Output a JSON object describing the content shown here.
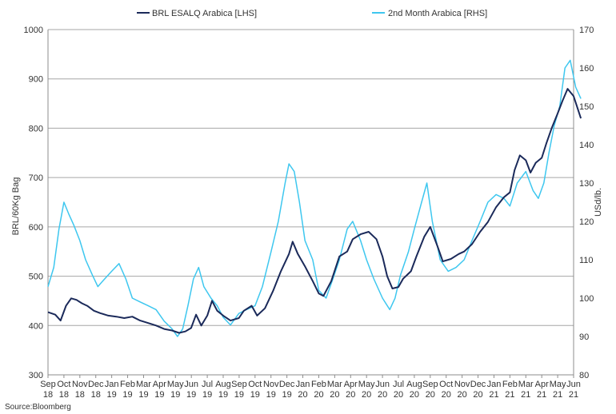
{
  "chart_data": {
    "type": "line",
    "legend_position": "top",
    "source": "Source:Bloomberg",
    "left_axis": {
      "label": "BRL/60Kg Bag",
      "ylim": [
        300,
        1000
      ],
      "ticks": [
        300,
        400,
        500,
        600,
        700,
        800,
        900,
        1000
      ]
    },
    "right_axis": {
      "label": "USd/lb.",
      "ylim": [
        80,
        170
      ],
      "ticks": [
        80,
        90,
        100,
        110,
        120,
        130,
        140,
        150,
        160,
        170
      ]
    },
    "x_axis": {
      "ticks": [
        {
          "month": "Sep",
          "year": "18"
        },
        {
          "month": "Oct",
          "year": "18"
        },
        {
          "month": "Nov",
          "year": "18"
        },
        {
          "month": "Dec",
          "year": "18"
        },
        {
          "month": "Jan",
          "year": "19"
        },
        {
          "month": "Feb",
          "year": "19"
        },
        {
          "month": "Mar",
          "year": "19"
        },
        {
          "month": "Apr",
          "year": "19"
        },
        {
          "month": "May",
          "year": "19"
        },
        {
          "month": "Jun",
          "year": "19"
        },
        {
          "month": "Jul",
          "year": "19"
        },
        {
          "month": "Aug",
          "year": "19"
        },
        {
          "month": "Sep",
          "year": "19"
        },
        {
          "month": "Oct",
          "year": "19"
        },
        {
          "month": "Nov",
          "year": "19"
        },
        {
          "month": "Dec",
          "year": "19"
        },
        {
          "month": "Jan",
          "year": "20"
        },
        {
          "month": "Feb",
          "year": "20"
        },
        {
          "month": "Mar",
          "year": "20"
        },
        {
          "month": "Apr",
          "year": "20"
        },
        {
          "month": "May",
          "year": "20"
        },
        {
          "month": "Jun",
          "year": "20"
        },
        {
          "month": "Jul",
          "year": "20"
        },
        {
          "month": "Aug",
          "year": "20"
        },
        {
          "month": "Sep",
          "year": "20"
        },
        {
          "month": "Oct",
          "year": "20"
        },
        {
          "month": "Nov",
          "year": "20"
        },
        {
          "month": "Dec",
          "year": "20"
        },
        {
          "month": "Jan",
          "year": "21"
        },
        {
          "month": "Feb",
          "year": "21"
        },
        {
          "month": "Mar",
          "year": "21"
        },
        {
          "month": "Apr",
          "year": "21"
        },
        {
          "month": "May",
          "year": "21"
        },
        {
          "month": "Jun",
          "year": "21"
        }
      ]
    },
    "series": [
      {
        "name": "BRL ESALQ Arabica [LHS]",
        "axis": "left",
        "color": "#1b2a5a",
        "points": [
          [
            "2018-09-01",
            427
          ],
          [
            "2018-09-15",
            422
          ],
          [
            "2018-09-25",
            410
          ],
          [
            "2018-10-05",
            440
          ],
          [
            "2018-10-15",
            455
          ],
          [
            "2018-10-25",
            452
          ],
          [
            "2018-11-05",
            445
          ],
          [
            "2018-11-15",
            440
          ],
          [
            "2018-11-28",
            430
          ],
          [
            "2018-12-10",
            425
          ],
          [
            "2018-12-25",
            420
          ],
          [
            "2019-01-10",
            418
          ],
          [
            "2019-01-25",
            415
          ],
          [
            "2019-02-10",
            418
          ],
          [
            "2019-02-25",
            410
          ],
          [
            "2019-03-10",
            405
          ],
          [
            "2019-03-25",
            400
          ],
          [
            "2019-04-10",
            393
          ],
          [
            "2019-04-25",
            390
          ],
          [
            "2019-05-08",
            385
          ],
          [
            "2019-05-20",
            388
          ],
          [
            "2019-05-31",
            395
          ],
          [
            "2019-06-10",
            422
          ],
          [
            "2019-06-20",
            400
          ],
          [
            "2019-07-01",
            420
          ],
          [
            "2019-07-10",
            450
          ],
          [
            "2019-07-20",
            430
          ],
          [
            "2019-08-01",
            420
          ],
          [
            "2019-08-15",
            410
          ],
          [
            "2019-08-31",
            415
          ],
          [
            "2019-09-10",
            430
          ],
          [
            "2019-09-25",
            440
          ],
          [
            "2019-10-05",
            420
          ],
          [
            "2019-10-20",
            435
          ],
          [
            "2019-11-05",
            470
          ],
          [
            "2019-11-20",
            510
          ],
          [
            "2019-12-05",
            545
          ],
          [
            "2019-12-12",
            570
          ],
          [
            "2019-12-22",
            545
          ],
          [
            "2020-01-05",
            520
          ],
          [
            "2020-01-20",
            490
          ],
          [
            "2020-02-01",
            465
          ],
          [
            "2020-02-10",
            460
          ],
          [
            "2020-02-25",
            490
          ],
          [
            "2020-03-10",
            540
          ],
          [
            "2020-03-25",
            550
          ],
          [
            "2020-04-05",
            575
          ],
          [
            "2020-04-20",
            585
          ],
          [
            "2020-05-05",
            590
          ],
          [
            "2020-05-20",
            575
          ],
          [
            "2020-06-01",
            540
          ],
          [
            "2020-06-10",
            500
          ],
          [
            "2020-06-20",
            475
          ],
          [
            "2020-07-01",
            478
          ],
          [
            "2020-07-10",
            495
          ],
          [
            "2020-07-25",
            510
          ],
          [
            "2020-08-05",
            540
          ],
          [
            "2020-08-20",
            580
          ],
          [
            "2020-09-01",
            600
          ],
          [
            "2020-09-15",
            560
          ],
          [
            "2020-09-25",
            530
          ],
          [
            "2020-10-10",
            535
          ],
          [
            "2020-10-25",
            545
          ],
          [
            "2020-11-05",
            550
          ],
          [
            "2020-11-20",
            565
          ],
          [
            "2020-12-05",
            590
          ],
          [
            "2020-12-20",
            610
          ],
          [
            "2021-01-05",
            640
          ],
          [
            "2021-01-20",
            660
          ],
          [
            "2021-02-01",
            670
          ],
          [
            "2021-02-10",
            715
          ],
          [
            "2021-02-20",
            745
          ],
          [
            "2021-03-01",
            735
          ],
          [
            "2021-03-10",
            710
          ],
          [
            "2021-03-20",
            730
          ],
          [
            "2021-04-01",
            740
          ],
          [
            "2021-04-10",
            770
          ],
          [
            "2021-04-20",
            800
          ],
          [
            "2021-05-01",
            830
          ],
          [
            "2021-05-10",
            855
          ],
          [
            "2021-05-20",
            880
          ],
          [
            "2021-06-01",
            865
          ],
          [
            "2021-06-15",
            820
          ]
        ]
      },
      {
        "name": "2nd Month Arabica [RHS]",
        "axis": "right",
        "color": "#3ec7ef",
        "points": [
          [
            "2018-09-01",
            103
          ],
          [
            "2018-09-12",
            108
          ],
          [
            "2018-09-22",
            118
          ],
          [
            "2018-10-01",
            125
          ],
          [
            "2018-10-10",
            122
          ],
          [
            "2018-10-20",
            119
          ],
          [
            "2018-11-01",
            115
          ],
          [
            "2018-11-12",
            110
          ],
          [
            "2018-11-25",
            106
          ],
          [
            "2018-12-05",
            103
          ],
          [
            "2018-12-18",
            105
          ],
          [
            "2019-01-01",
            107
          ],
          [
            "2019-01-15",
            109
          ],
          [
            "2019-01-28",
            105
          ],
          [
            "2019-02-10",
            100
          ],
          [
            "2019-02-25",
            99
          ],
          [
            "2019-03-10",
            98
          ],
          [
            "2019-03-25",
            97
          ],
          [
            "2019-04-10",
            94
          ],
          [
            "2019-04-25",
            92
          ],
          [
            "2019-05-05",
            90
          ],
          [
            "2019-05-15",
            92
          ],
          [
            "2019-05-25",
            98
          ],
          [
            "2019-06-05",
            105
          ],
          [
            "2019-06-15",
            108
          ],
          [
            "2019-06-25",
            103
          ],
          [
            "2019-07-08",
            100
          ],
          [
            "2019-07-20",
            98
          ],
          [
            "2019-08-01",
            95
          ],
          [
            "2019-08-15",
            93
          ],
          [
            "2019-08-31",
            96
          ],
          [
            "2019-09-15",
            97
          ],
          [
            "2019-10-01",
            98
          ],
          [
            "2019-10-15",
            103
          ],
          [
            "2019-11-01",
            112
          ],
          [
            "2019-11-15",
            120
          ],
          [
            "2019-11-28",
            130
          ],
          [
            "2019-12-05",
            135
          ],
          [
            "2019-12-15",
            133
          ],
          [
            "2019-12-25",
            125
          ],
          [
            "2020-01-05",
            115
          ],
          [
            "2020-01-20",
            110
          ],
          [
            "2020-02-01",
            102
          ],
          [
            "2020-02-15",
            100
          ],
          [
            "2020-02-28",
            105
          ],
          [
            "2020-03-10",
            110
          ],
          [
            "2020-03-25",
            118
          ],
          [
            "2020-04-05",
            120
          ],
          [
            "2020-04-20",
            115
          ],
          [
            "2020-05-01",
            110
          ],
          [
            "2020-05-15",
            105
          ],
          [
            "2020-06-01",
            100
          ],
          [
            "2020-06-15",
            97
          ],
          [
            "2020-06-25",
            100
          ],
          [
            "2020-07-05",
            106
          ],
          [
            "2020-07-20",
            112
          ],
          [
            "2020-08-01",
            118
          ],
          [
            "2020-08-15",
            125
          ],
          [
            "2020-08-25",
            130
          ],
          [
            "2020-09-05",
            120
          ],
          [
            "2020-09-20",
            110
          ],
          [
            "2020-10-05",
            107
          ],
          [
            "2020-10-20",
            108
          ],
          [
            "2020-11-05",
            110
          ],
          [
            "2020-11-20",
            115
          ],
          [
            "2020-12-05",
            120
          ],
          [
            "2020-12-20",
            125
          ],
          [
            "2021-01-05",
            127
          ],
          [
            "2021-01-20",
            126
          ],
          [
            "2021-02-01",
            124
          ],
          [
            "2021-02-15",
            130
          ],
          [
            "2021-03-01",
            133
          ],
          [
            "2021-03-15",
            128
          ],
          [
            "2021-03-25",
            126
          ],
          [
            "2021-04-05",
            130
          ],
          [
            "2021-04-15",
            138
          ],
          [
            "2021-04-25",
            145
          ],
          [
            "2021-05-05",
            150
          ],
          [
            "2021-05-15",
            160
          ],
          [
            "2021-05-25",
            162
          ],
          [
            "2021-06-05",
            155
          ],
          [
            "2021-06-15",
            152
          ]
        ]
      }
    ]
  }
}
